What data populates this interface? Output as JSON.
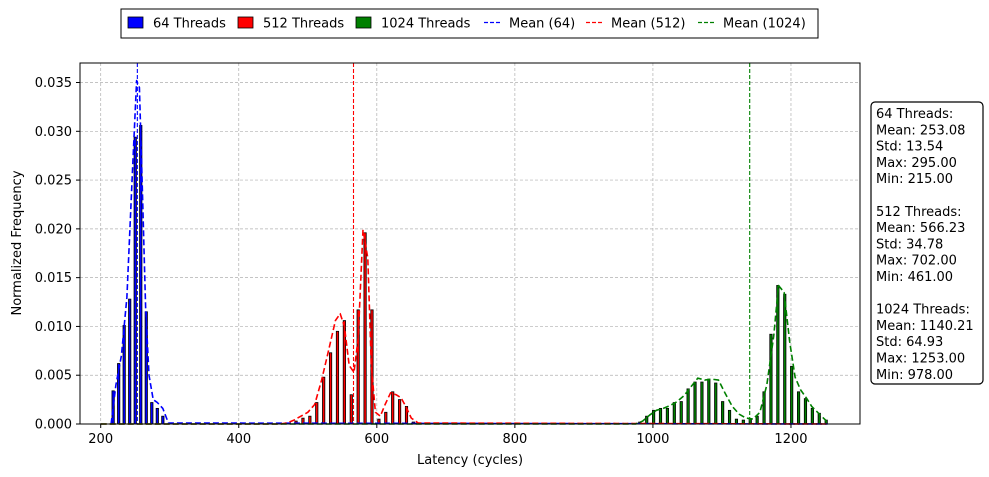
{
  "chart_data": {
    "type": "bar",
    "xlabel": "Latency (cycles)",
    "ylabel": "Normalized Frequency",
    "xlim": [
      170,
      1300
    ],
    "ylim": [
      0,
      0.037
    ],
    "xticks": [
      200,
      400,
      600,
      800,
      1000,
      1200
    ],
    "yticks": [
      0.0,
      0.005,
      0.01,
      0.015,
      0.02,
      0.025,
      0.03,
      0.035
    ],
    "xtick_labels": [
      "200",
      "400",
      "600",
      "800",
      "1000",
      "1200"
    ],
    "ytick_labels": [
      "0.000",
      "0.005",
      "0.010",
      "0.015",
      "0.020",
      "0.025",
      "0.030",
      "0.035"
    ],
    "grid": true,
    "legend_placement": "top-center outside",
    "legend": {
      "items": [
        {
          "label": "64 Threads",
          "kind": "patch",
          "color": "#0000ff"
        },
        {
          "label": "512 Threads",
          "kind": "patch",
          "color": "#ff0000"
        },
        {
          "label": "1024 Threads",
          "kind": "patch",
          "color": "#008000"
        },
        {
          "label": "Mean (64)",
          "kind": "dash",
          "color": "#0000ff"
        },
        {
          "label": "Mean (512)",
          "kind": "dash",
          "color": "#ff0000"
        },
        {
          "label": "Mean (1024)",
          "kind": "dash",
          "color": "#008000"
        }
      ]
    },
    "series": [
      {
        "name": "64 Threads",
        "color": "#0000ff",
        "mean": 253.08,
        "bins_x": [
          218,
          226,
          234,
          242,
          250,
          258,
          266,
          274,
          282,
          290,
          298
        ],
        "bins_y": [
          0.0034,
          0.0062,
          0.0101,
          0.0128,
          0.0294,
          0.0306,
          0.0115,
          0.0022,
          0.0016,
          0.0008,
          0.0
        ],
        "density_x": [
          215,
          222,
          230,
          238,
          246,
          252,
          256,
          260,
          265,
          270,
          276,
          282,
          290,
          298,
          1253
        ],
        "density_y": [
          0.0,
          0.004,
          0.007,
          0.013,
          0.026,
          0.0352,
          0.0345,
          0.025,
          0.012,
          0.005,
          0.0025,
          0.0022,
          0.0016,
          0.0001,
          0.0
        ]
      },
      {
        "name": "512 Threads",
        "color": "#ff0000",
        "mean": 566.23,
        "bins_x": [
          463,
          473,
          483,
          493,
          503,
          513,
          523,
          533,
          543,
          553,
          563,
          573,
          583,
          593,
          603,
          613,
          623,
          633,
          643,
          653,
          663,
          673,
          683,
          693,
          700
        ],
        "bins_y": [
          0.0,
          0.0001,
          0.0003,
          0.0006,
          0.0008,
          0.0022,
          0.0048,
          0.0073,
          0.0095,
          0.0106,
          0.003,
          0.0117,
          0.0196,
          0.0117,
          0.0005,
          0.0012,
          0.0033,
          0.0025,
          0.0018,
          0.0002,
          0.0001,
          0.0,
          0.0,
          0.0,
          0.0001
        ],
        "density_x": [
          200,
          460,
          470,
          480,
          490,
          500,
          510,
          520,
          530,
          540,
          547,
          553,
          560,
          567,
          573,
          580,
          587,
          592,
          598,
          605,
          612,
          620,
          628,
          635,
          642,
          650,
          660,
          1253
        ],
        "density_y": [
          0.0,
          0.0,
          0.0001,
          0.0004,
          0.0008,
          0.0012,
          0.002,
          0.0045,
          0.0075,
          0.0106,
          0.0113,
          0.01,
          0.006,
          0.0053,
          0.0088,
          0.0199,
          0.017,
          0.006,
          0.0012,
          0.0008,
          0.002,
          0.0032,
          0.003,
          0.0027,
          0.0018,
          0.0006,
          0.0001,
          0.0
        ]
      },
      {
        "name": "1024 Threads",
        "color": "#008000",
        "mean": 1140.21,
        "bins_x": [
          981,
          991,
          1001,
          1011,
          1021,
          1031,
          1041,
          1051,
          1061,
          1071,
          1081,
          1091,
          1101,
          1111,
          1121,
          1131,
          1141,
          1151,
          1161,
          1171,
          1181,
          1191,
          1201,
          1211,
          1221,
          1231,
          1241,
          1251
        ],
        "bins_y": [
          0.0002,
          0.0008,
          0.0014,
          0.0016,
          0.0016,
          0.0022,
          0.0023,
          0.0036,
          0.0043,
          0.0043,
          0.0046,
          0.0042,
          0.0023,
          0.0014,
          0.0005,
          0.0004,
          0.0005,
          0.0008,
          0.0033,
          0.0092,
          0.0142,
          0.0133,
          0.0059,
          0.0033,
          0.0026,
          0.0016,
          0.0011,
          0.0004
        ],
        "density_x": [
          200,
          975,
          985,
          995,
          1005,
          1015,
          1025,
          1035,
          1045,
          1055,
          1065,
          1075,
          1085,
          1095,
          1105,
          1115,
          1125,
          1135,
          1145,
          1155,
          1165,
          1175,
          1182,
          1190,
          1198,
          1206,
          1214,
          1222,
          1230,
          1240,
          1250,
          1253
        ],
        "density_y": [
          0.0,
          0.0,
          0.0003,
          0.0009,
          0.0014,
          0.0016,
          0.0019,
          0.0023,
          0.0029,
          0.0038,
          0.0047,
          0.0045,
          0.0046,
          0.0045,
          0.0031,
          0.0018,
          0.001,
          0.0006,
          0.0005,
          0.0012,
          0.004,
          0.009,
          0.0142,
          0.0135,
          0.0085,
          0.0048,
          0.0035,
          0.0027,
          0.0018,
          0.0011,
          0.0004,
          0.0
        ]
      }
    ],
    "stats_box": {
      "lines": [
        "64 Threads:",
        "Mean: 253.08",
        "Std: 13.54",
        "Max: 295.00",
        "Min: 215.00",
        "",
        "512 Threads:",
        "Mean: 566.23",
        "Std: 34.78",
        "Max: 702.00",
        "Min: 461.00",
        "",
        "1024 Threads:",
        "Mean: 1140.21",
        "Std: 64.93",
        "Max: 1253.00",
        "Min: 978.00"
      ]
    }
  }
}
